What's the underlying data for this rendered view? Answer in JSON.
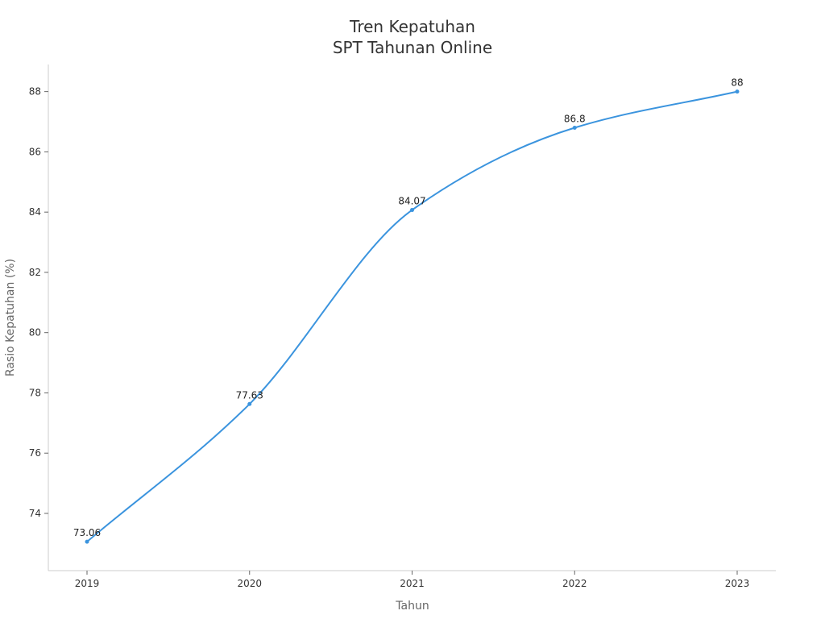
{
  "chart_data": {
    "type": "line",
    "title_line1": "Tren Kepatuhan",
    "title_line2": "SPT Tahunan Online",
    "xlabel": "Tahun",
    "ylabel": "Rasio Kepatuhan (%)",
    "categories": [
      "2019",
      "2020",
      "2021",
      "2022",
      "2023"
    ],
    "series": [
      {
        "name": "Rasio Kepatuhan",
        "values": [
          73.06,
          77.63,
          84.07,
          86.8,
          88
        ],
        "color": "#3b94de"
      }
    ],
    "data_labels": [
      "73.06",
      "77.63",
      "84.07",
      "86.8",
      "88"
    ],
    "ylim": [
      72.1,
      88.9
    ],
    "yticks": [
      74,
      76,
      78,
      80,
      82,
      84,
      86,
      88
    ],
    "ytick_labels": [
      "74",
      "76",
      "78",
      "80",
      "82",
      "84",
      "86",
      "88"
    ],
    "grid": false,
    "line_smooth": true
  }
}
